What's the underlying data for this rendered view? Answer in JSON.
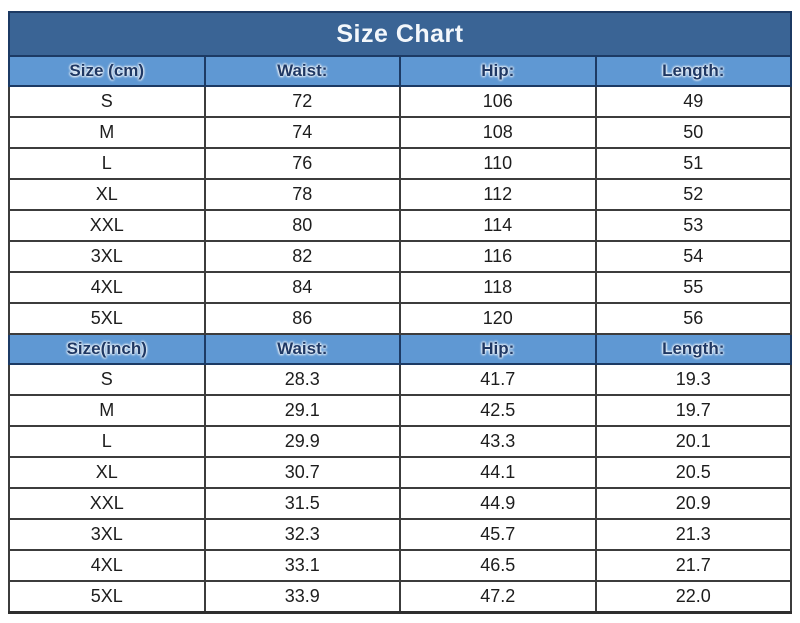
{
  "title": "Size Chart",
  "colors": {
    "title_bg": "#3a6495",
    "title_text": "#f3f7fb",
    "header_bg": "#5f98d3",
    "header_text": "#1f3864",
    "row_bg": "#ffffff",
    "row_text": "#1d1d1d",
    "border_blue": "#1c3a64",
    "border_dark": "#3c3c3c"
  },
  "chart_data": {
    "type": "table",
    "title": "Size Chart",
    "sections": [
      {
        "unit": "cm",
        "headers": [
          "Size (cm)",
          "Waist:",
          "Hip:",
          "Length:"
        ],
        "rows": [
          [
            "S",
            "72",
            "106",
            "49"
          ],
          [
            "M",
            "74",
            "108",
            "50"
          ],
          [
            "L",
            "76",
            "110",
            "51"
          ],
          [
            "XL",
            "78",
            "112",
            "52"
          ],
          [
            "XXL",
            "80",
            "114",
            "53"
          ],
          [
            "3XL",
            "82",
            "116",
            "54"
          ],
          [
            "4XL",
            "84",
            "118",
            "55"
          ],
          [
            "5XL",
            "86",
            "120",
            "56"
          ]
        ]
      },
      {
        "unit": "inch",
        "headers": [
          "Size(inch)",
          "Waist:",
          "Hip:",
          "Length:"
        ],
        "rows": [
          [
            "S",
            "28.3",
            "41.7",
            "19.3"
          ],
          [
            "M",
            "29.1",
            "42.5",
            "19.7"
          ],
          [
            "L",
            "29.9",
            "43.3",
            "20.1"
          ],
          [
            "XL",
            "30.7",
            "44.1",
            "20.5"
          ],
          [
            "XXL",
            "31.5",
            "44.9",
            "20.9"
          ],
          [
            "3XL",
            "32.3",
            "45.7",
            "21.3"
          ],
          [
            "4XL",
            "33.1",
            "46.5",
            "21.7"
          ],
          [
            "5XL",
            "33.9",
            "47.2",
            "22.0"
          ]
        ]
      }
    ]
  }
}
